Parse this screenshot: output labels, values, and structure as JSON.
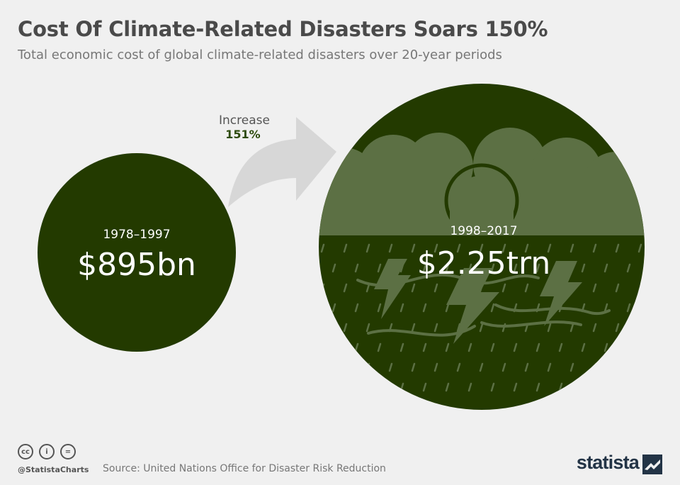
{
  "title": "Cost Of Climate-Related Disasters Soars 150%",
  "subtitle": "Total economic cost of global climate-related disasters over 20-year periods",
  "chart_data": {
    "type": "bubble",
    "title": "Cost Of Climate-Related Disasters Soars 150%",
    "subtitle": "Total economic cost of global climate-related disasters over 20-year periods",
    "categories": [
      "1978–1997",
      "1998–2017"
    ],
    "values": [
      895,
      2250
    ],
    "value_labels": [
      "$895bn",
      "$2.25trn"
    ],
    "units": "billion USD",
    "annotation": {
      "label": "Increase",
      "value": "151%"
    }
  },
  "colors": {
    "circle": "#233a00",
    "cloud": "#5c7044",
    "arrow": "#d7d7d7",
    "increase_value": "#2d4a0c",
    "background": "#f0f0f0"
  },
  "footer": {
    "handle": "@StatistaCharts",
    "source": "Source: United Nations Office for Disaster Risk Reduction",
    "brand": "statista",
    "cc_icons": [
      "cc-icon",
      "by-icon",
      "nd-icon"
    ],
    "cc_glyphs": [
      "cc",
      "i",
      "="
    ]
  }
}
